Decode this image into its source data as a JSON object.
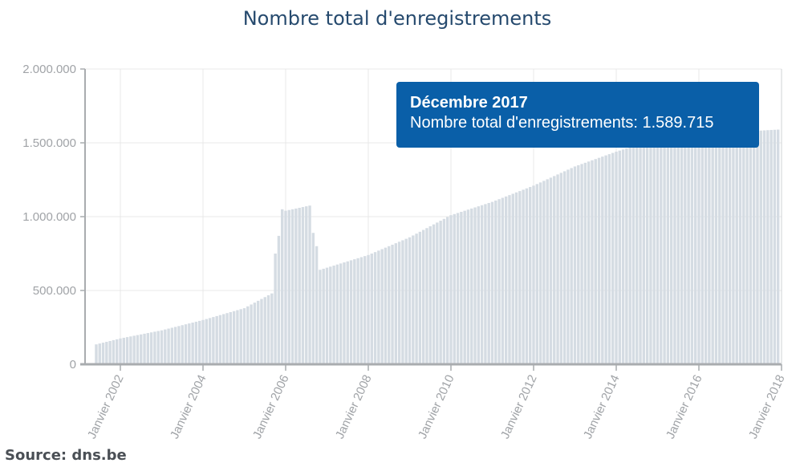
{
  "chart_data": {
    "type": "bar",
    "title": "Nombre total d'enregistrements",
    "xlabel": "",
    "ylabel": "",
    "ylim": [
      0,
      2000000
    ],
    "yticks": [
      "0",
      "500.000",
      "1.000.000",
      "1.500.000",
      "2.000.000"
    ],
    "xticks": [
      "Janvier 2002",
      "Janvier 2004",
      "Janvier 2006",
      "Janvier 2008",
      "Janvier 2010",
      "Janvier 2012",
      "Janvier 2014",
      "Janvier 2016",
      "Janvier 2018"
    ],
    "grid": true,
    "bar_color": "#d5dce3",
    "anchors": [
      [
        "2001-06",
        135000
      ],
      [
        "2002-01",
        175000
      ],
      [
        "2003-01",
        230000
      ],
      [
        "2004-01",
        300000
      ],
      [
        "2005-01",
        380000
      ],
      [
        "2005-09",
        480000
      ],
      [
        "2005-10",
        750000
      ],
      [
        "2005-11",
        870000
      ],
      [
        "2005-12",
        1050000
      ],
      [
        "2006-01",
        1040000
      ],
      [
        "2006-08",
        1075000
      ],
      [
        "2006-09",
        890000
      ],
      [
        "2006-10",
        800000
      ],
      [
        "2006-11",
        640000
      ],
      [
        "2008-01",
        740000
      ],
      [
        "2009-01",
        860000
      ],
      [
        "2010-01",
        1010000
      ],
      [
        "2011-01",
        1100000
      ],
      [
        "2012-01",
        1210000
      ],
      [
        "2013-01",
        1340000
      ],
      [
        "2014-01",
        1440000
      ],
      [
        "2015-01",
        1530000
      ],
      [
        "2016-01",
        1560000
      ],
      [
        "2017-01",
        1575000
      ],
      [
        "2017-12",
        1589715
      ]
    ],
    "tooltip": {
      "title": "Décembre 2017",
      "label": "Nombre total d'enregistrements: 1.589.715"
    }
  },
  "colors": {
    "title": "#264a6e",
    "tooltip_bg": "#0a5fa8",
    "axis": "#a9acaf",
    "grid": "#e8e8e8"
  },
  "source": "Source: dns.be"
}
